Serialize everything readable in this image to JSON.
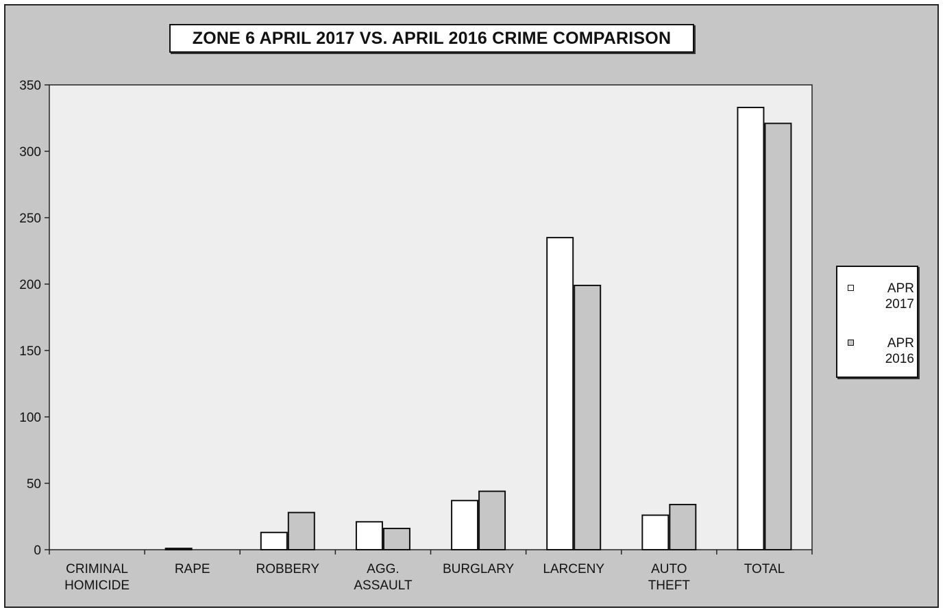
{
  "chart_data": {
    "type": "bar",
    "title": "ZONE 6  APRIL 2017 VS. APRIL 2016 CRIME COMPARISON",
    "categories": [
      [
        "CRIMINAL",
        "HOMICIDE"
      ],
      [
        "RAPE"
      ],
      [
        "ROBBERY"
      ],
      [
        "AGG.",
        "ASSAULT"
      ],
      [
        "BURGLARY"
      ],
      [
        "LARCENY"
      ],
      [
        "AUTO",
        "THEFT"
      ],
      [
        "TOTAL"
      ]
    ],
    "series": [
      {
        "name": "APR 2017",
        "name_lines": [
          "APR",
          "2017"
        ],
        "color": "#ffffff",
        "values": [
          0,
          1,
          13,
          21,
          37,
          235,
          26,
          333
        ]
      },
      {
        "name": "APR 2016",
        "name_lines": [
          "APR",
          "2016"
        ],
        "color": "#c6c6c6",
        "values": [
          0,
          0,
          28,
          16,
          44,
          199,
          34,
          321
        ]
      }
    ],
    "ylim": [
      0,
      350
    ],
    "yticks": [
      0,
      50,
      100,
      150,
      200,
      250,
      300,
      350
    ],
    "xlabel": "",
    "ylabel": "",
    "grid": false,
    "legend_position": "right",
    "plot_background": "#eeeeee",
    "chart_background": "#c6c6c6"
  }
}
